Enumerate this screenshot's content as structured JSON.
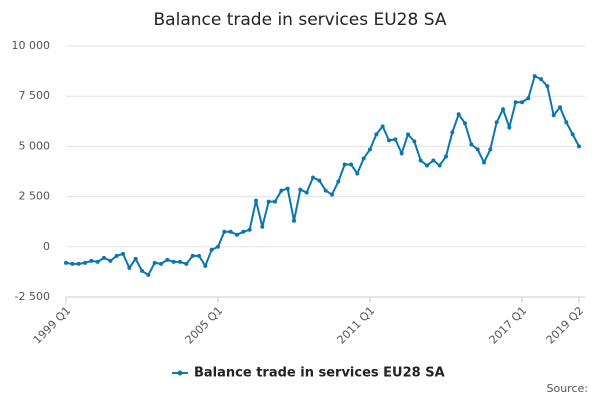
{
  "chart_data": {
    "type": "line",
    "title": "Balance trade in services EU28 SA",
    "categories": [
      "1999 Q1",
      null,
      null,
      null,
      null,
      null,
      null,
      null,
      null,
      null,
      null,
      null,
      null,
      null,
      null,
      null,
      null,
      null,
      null,
      null,
      null,
      null,
      null,
      null,
      "2005 Q1",
      null,
      null,
      null,
      null,
      null,
      null,
      null,
      null,
      null,
      null,
      null,
      null,
      null,
      null,
      null,
      null,
      null,
      null,
      null,
      null,
      null,
      null,
      null,
      "2011 Q1",
      null,
      null,
      null,
      null,
      null,
      null,
      null,
      null,
      null,
      null,
      null,
      null,
      null,
      null,
      null,
      null,
      null,
      null,
      null,
      null,
      null,
      null,
      null,
      "2017 Q1",
      null,
      null,
      null,
      null,
      null,
      null,
      null,
      null,
      "2019 Q2"
    ],
    "series": [
      {
        "name": "Balance trade in services EU28 SA",
        "color": "#0b76b0",
        "values": [
          -800,
          -850,
          -850,
          -800,
          -700,
          -750,
          -550,
          -700,
          -450,
          -350,
          -1050,
          -600,
          -1200,
          -1400,
          -800,
          -850,
          -650,
          -750,
          -750,
          -850,
          -450,
          -450,
          -950,
          -150,
          0,
          750,
          750,
          600,
          750,
          850,
          2300,
          1000,
          2250,
          2250,
          2800,
          2900,
          1300,
          2850,
          2700,
          3450,
          3300,
          2800,
          2600,
          3250,
          4100,
          4100,
          3650,
          4400,
          4850,
          5600,
          6000,
          5300,
          5350,
          4650,
          5600,
          5250,
          4300,
          4050,
          4300,
          4050,
          4500,
          5700,
          6600,
          6150,
          5100,
          4850,
          4200,
          4850,
          6200,
          6850,
          5950,
          7200,
          7200,
          7400,
          8500,
          8350,
          8000,
          6550,
          6950,
          6200,
          5600,
          5000
        ]
      }
    ],
    "ylim": [
      -2500,
      10000
    ],
    "yticks": [
      {
        "value": -2500,
        "label": "-2 500"
      },
      0,
      {
        "value": 2500,
        "label": "2 500"
      },
      {
        "value": 5000,
        "label": "5 000"
      },
      {
        "value": 7500,
        "label": "7 500"
      },
      {
        "value": 10000,
        "label": "10 000"
      }
    ],
    "grid": true,
    "legend": "bottom",
    "source": "Source:"
  }
}
